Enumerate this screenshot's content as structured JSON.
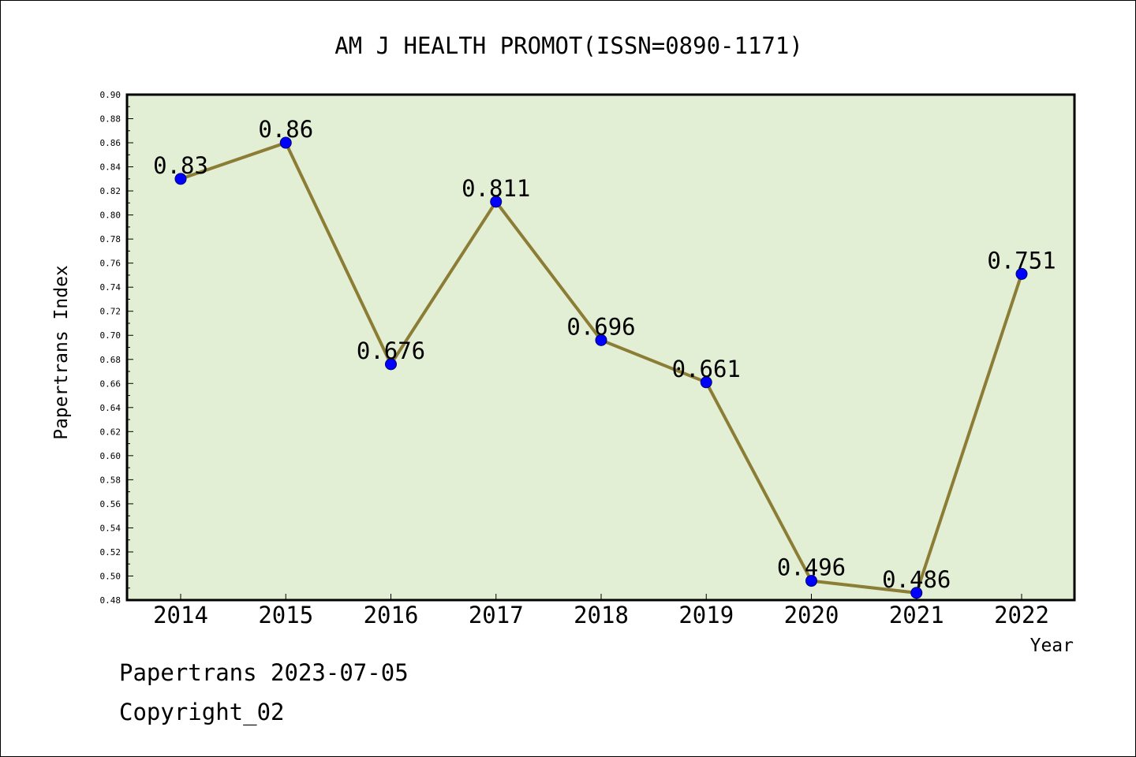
{
  "chart_data": {
    "type": "line",
    "title": "AM J HEALTH PROMOT(ISSN=0890-1171)",
    "xlabel": "Year",
    "ylabel": "Papertrans Index",
    "categories": [
      "2014",
      "2015",
      "2016",
      "2017",
      "2018",
      "2019",
      "2020",
      "2021",
      "2022"
    ],
    "values": [
      0.83,
      0.86,
      0.676,
      0.811,
      0.696,
      0.661,
      0.496,
      0.486,
      0.751
    ],
    "data_labels": [
      "0.83",
      "0.86",
      "0.676",
      "0.811",
      "0.696",
      "0.661",
      "0.496",
      "0.486",
      "0.751"
    ],
    "ylim": [
      0.48,
      0.9
    ],
    "y_ticks": [
      "0.48",
      "0.50",
      "0.52",
      "0.54",
      "0.56",
      "0.58",
      "0.60",
      "0.62",
      "0.64",
      "0.66",
      "0.68",
      "0.70",
      "0.72",
      "0.74",
      "0.76",
      "0.78",
      "0.80",
      "0.82",
      "0.84",
      "0.86",
      "0.88",
      "0.90"
    ],
    "grid": false,
    "colors": {
      "plot_background": "#e2efd4",
      "line": "#8b7d35",
      "marker": "#0000ff"
    }
  },
  "footer": {
    "source": "Papertrans 2023-07-05",
    "copyright": "Copyright_02"
  }
}
